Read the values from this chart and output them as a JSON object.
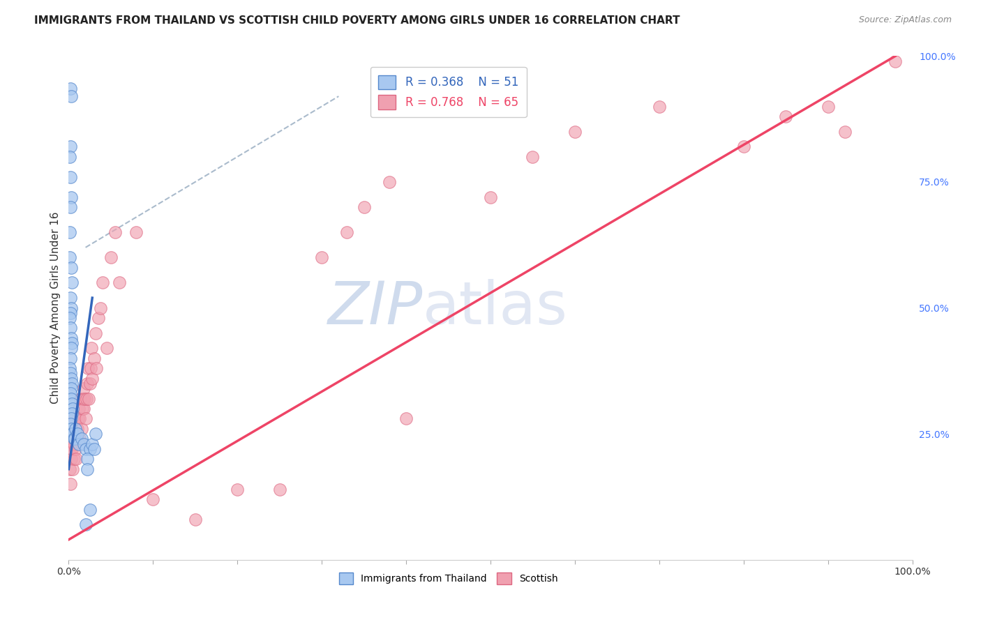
{
  "title": "IMMIGRANTS FROM THAILAND VS SCOTTISH CHILD POVERTY AMONG GIRLS UNDER 16 CORRELATION CHART",
  "source": "Source: ZipAtlas.com",
  "ylabel": "Child Poverty Among Girls Under 16",
  "watermark_zip": "ZIP",
  "watermark_atlas": "atlas",
  "legend_blue_r": "R = 0.368",
  "legend_blue_n": "N = 51",
  "legend_pink_r": "R = 0.768",
  "legend_pink_n": "N = 65",
  "blue_color": "#a8c8f0",
  "pink_color": "#f0a0b0",
  "blue_edge_color": "#5588cc",
  "pink_edge_color": "#dd6680",
  "blue_line_color": "#3366bb",
  "pink_line_color": "#ee4466",
  "dashed_color": "#aabbcc",
  "xlim": [
    0.0,
    1.0
  ],
  "ylim": [
    0.0,
    1.0
  ],
  "xtick_pos": [
    0.0,
    0.1,
    0.2,
    0.3,
    0.4,
    0.5,
    0.6,
    0.7,
    0.8,
    0.9,
    1.0
  ],
  "ytick_right_pos": [
    0.0,
    0.25,
    0.5,
    0.75,
    1.0
  ],
  "ytick_right_labels": [
    "",
    "25.0%",
    "50.0%",
    "75.0%",
    "100.0%"
  ],
  "grid_color": "#e0e0e0",
  "bg_color": "#ffffff",
  "blue_x": [
    0.002,
    0.003,
    0.002,
    0.001,
    0.002,
    0.003,
    0.002,
    0.001,
    0.001,
    0.003,
    0.004,
    0.002,
    0.003,
    0.002,
    0.001,
    0.002,
    0.003,
    0.004,
    0.003,
    0.002,
    0.001,
    0.002,
    0.003,
    0.004,
    0.003,
    0.002,
    0.003,
    0.004,
    0.005,
    0.004,
    0.003,
    0.002,
    0.003,
    0.004,
    0.005,
    0.006,
    0.007,
    0.008,
    0.01,
    0.012,
    0.015,
    0.018,
    0.02,
    0.025,
    0.022,
    0.028,
    0.03,
    0.022,
    0.032,
    0.025,
    0.02
  ],
  "blue_y": [
    0.935,
    0.92,
    0.82,
    0.8,
    0.76,
    0.72,
    0.7,
    0.65,
    0.6,
    0.58,
    0.55,
    0.52,
    0.5,
    0.49,
    0.48,
    0.46,
    0.44,
    0.43,
    0.42,
    0.4,
    0.38,
    0.37,
    0.36,
    0.35,
    0.34,
    0.33,
    0.32,
    0.31,
    0.3,
    0.29,
    0.28,
    0.27,
    0.26,
    0.25,
    0.25,
    0.24,
    0.24,
    0.26,
    0.25,
    0.23,
    0.24,
    0.23,
    0.22,
    0.22,
    0.2,
    0.23,
    0.22,
    0.18,
    0.25,
    0.1,
    0.07
  ],
  "pink_x": [
    0.001,
    0.002,
    0.002,
    0.003,
    0.003,
    0.004,
    0.005,
    0.005,
    0.006,
    0.006,
    0.007,
    0.008,
    0.008,
    0.009,
    0.01,
    0.01,
    0.011,
    0.012,
    0.013,
    0.013,
    0.014,
    0.015,
    0.016,
    0.017,
    0.018,
    0.018,
    0.019,
    0.02,
    0.021,
    0.022,
    0.023,
    0.024,
    0.025,
    0.026,
    0.027,
    0.028,
    0.03,
    0.032,
    0.033,
    0.035,
    0.038,
    0.04,
    0.045,
    0.05,
    0.055,
    0.06,
    0.08,
    0.1,
    0.15,
    0.2,
    0.25,
    0.3,
    0.33,
    0.35,
    0.38,
    0.4,
    0.5,
    0.55,
    0.6,
    0.7,
    0.8,
    0.85,
    0.9,
    0.92,
    0.98
  ],
  "pink_y": [
    0.18,
    0.22,
    0.15,
    0.25,
    0.2,
    0.22,
    0.18,
    0.25,
    0.2,
    0.23,
    0.28,
    0.22,
    0.25,
    0.2,
    0.24,
    0.26,
    0.28,
    0.3,
    0.24,
    0.28,
    0.32,
    0.26,
    0.3,
    0.32,
    0.34,
    0.3,
    0.32,
    0.28,
    0.32,
    0.35,
    0.38,
    0.32,
    0.35,
    0.38,
    0.42,
    0.36,
    0.4,
    0.45,
    0.38,
    0.48,
    0.5,
    0.55,
    0.42,
    0.6,
    0.65,
    0.55,
    0.65,
    0.12,
    0.08,
    0.14,
    0.14,
    0.6,
    0.65,
    0.7,
    0.75,
    0.28,
    0.72,
    0.8,
    0.85,
    0.9,
    0.82,
    0.88,
    0.9,
    0.85,
    0.99
  ],
  "blue_line_x": [
    0.0,
    0.028
  ],
  "blue_line_y": [
    0.18,
    0.52
  ],
  "pink_line_x": [
    0.0,
    0.98
  ],
  "pink_line_y": [
    0.04,
    1.0
  ],
  "dashed_line_x": [
    0.02,
    0.32
  ],
  "dashed_line_y": [
    0.62,
    0.92
  ],
  "title_fontsize": 11,
  "axis_label_fontsize": 11,
  "tick_fontsize": 10,
  "source_fontsize": 9,
  "legend_fontsize": 12
}
